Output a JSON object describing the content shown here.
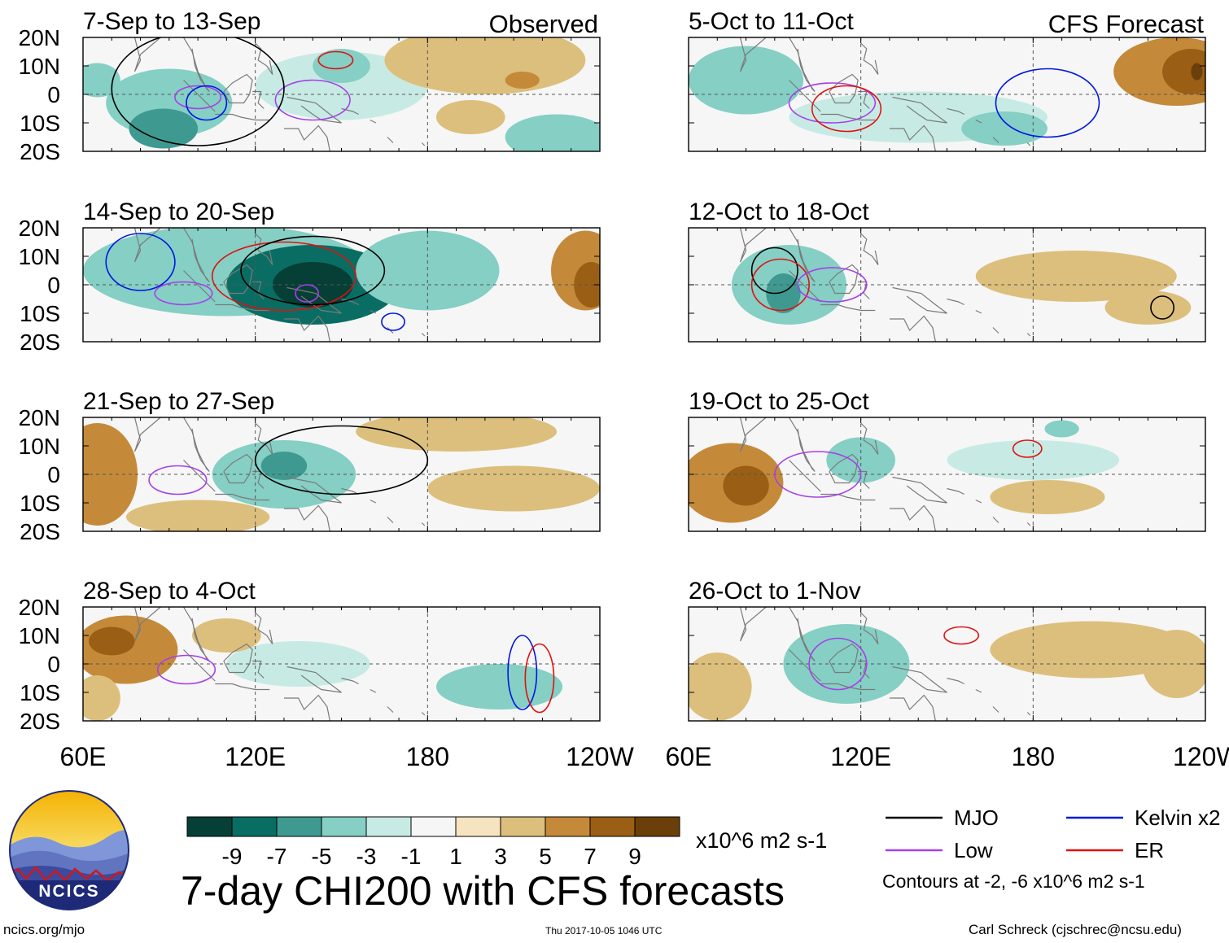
{
  "chart_data": {
    "type": "heatmap",
    "title": "7-day CHI200 with CFS forecasts",
    "units": "x10^6 m2 s-1",
    "column_labels": {
      "left": "Observed",
      "right": "CFS Forecast"
    },
    "x_ticks": [
      "60E",
      "120E",
      "180",
      "120W"
    ],
    "x_range_deg": [
      60,
      240
    ],
    "y_ticks": [
      "20N",
      "10N",
      "0",
      "10S",
      "20S"
    ],
    "y_range_deg": [
      20,
      -20
    ],
    "panels": [
      {
        "period": "7-Sep to 13-Sep",
        "kind": "observed",
        "blobs": [
          {
            "lon": 65,
            "lat": 5,
            "rx": 8,
            "ry": 6,
            "v": -3
          },
          {
            "lon": 90,
            "lat": -3,
            "rx": 22,
            "ry": 12,
            "v": -3
          },
          {
            "lon": 88,
            "lat": -12,
            "rx": 12,
            "ry": 7,
            "v": -6
          },
          {
            "lon": 150,
            "lat": 3,
            "rx": 30,
            "ry": 12,
            "v": -2
          },
          {
            "lon": 150,
            "lat": 10,
            "rx": 10,
            "ry": 6,
            "v": -4
          },
          {
            "lon": 200,
            "lat": 12,
            "rx": 35,
            "ry": 12,
            "v": 2
          },
          {
            "lon": 213,
            "lat": 5,
            "rx": 6,
            "ry": 3,
            "v": 5
          },
          {
            "lon": 225,
            "lat": -15,
            "rx": 18,
            "ry": 8,
            "v": -3
          },
          {
            "lon": 195,
            "lat": -8,
            "rx": 12,
            "ry": 6,
            "v": 2
          }
        ],
        "contours": [
          {
            "type": "Low",
            "lon": 100,
            "lat": -1,
            "rx": 8,
            "ry": 4
          },
          {
            "type": "Low",
            "lon": 140,
            "lat": -2,
            "rx": 13,
            "ry": 7
          },
          {
            "type": "ER",
            "lon": 148,
            "lat": 12,
            "rx": 6,
            "ry": 3
          },
          {
            "type": "Kelvin",
            "lon": 103,
            "lat": -3,
            "rx": 7,
            "ry": 6
          },
          {
            "type": "MJO",
            "lon": 100,
            "lat": 2,
            "rx": 30,
            "ry": 20
          }
        ]
      },
      {
        "period": "14-Sep to 20-Sep",
        "kind": "observed",
        "blobs": [
          {
            "lon": 110,
            "lat": 5,
            "rx": 50,
            "ry": 16,
            "v": -4
          },
          {
            "lon": 140,
            "lat": 0,
            "rx": 30,
            "ry": 14,
            "v": -7
          },
          {
            "lon": 140,
            "lat": 0,
            "rx": 14,
            "ry": 8,
            "v": -9
          },
          {
            "lon": 180,
            "lat": 5,
            "rx": 25,
            "ry": 14,
            "v": -3
          },
          {
            "lon": 235,
            "lat": 5,
            "rx": 12,
            "ry": 14,
            "v": 5
          },
          {
            "lon": 237,
            "lat": 0,
            "rx": 6,
            "ry": 8,
            "v": 7
          }
        ],
        "contours": [
          {
            "type": "ER",
            "lon": 130,
            "lat": 3,
            "rx": 25,
            "ry": 12
          },
          {
            "type": "MJO",
            "lon": 140,
            "lat": 5,
            "rx": 25,
            "ry": 12
          },
          {
            "type": "Low",
            "lon": 95,
            "lat": -3,
            "rx": 10,
            "ry": 4
          },
          {
            "type": "Low",
            "lon": 138,
            "lat": -3,
            "rx": 4,
            "ry": 3
          },
          {
            "type": "Kelvin",
            "lon": 168,
            "lat": -13,
            "rx": 4,
            "ry": 3
          },
          {
            "type": "Kelvin",
            "lon": 80,
            "lat": 8,
            "rx": 12,
            "ry": 10
          }
        ]
      },
      {
        "period": "21-Sep to 27-Sep",
        "kind": "observed",
        "blobs": [
          {
            "lon": 65,
            "lat": 0,
            "rx": 14,
            "ry": 18,
            "v": 5
          },
          {
            "lon": 130,
            "lat": 0,
            "rx": 25,
            "ry": 12,
            "v": -3
          },
          {
            "lon": 130,
            "lat": 3,
            "rx": 8,
            "ry": 5,
            "v": -6
          },
          {
            "lon": 190,
            "lat": 15,
            "rx": 35,
            "ry": 7,
            "v": 2
          },
          {
            "lon": 210,
            "lat": -5,
            "rx": 30,
            "ry": 8,
            "v": 2
          },
          {
            "lon": 100,
            "lat": -15,
            "rx": 25,
            "ry": 6,
            "v": 3
          }
        ],
        "contours": [
          {
            "type": "Low",
            "lon": 93,
            "lat": -2,
            "rx": 10,
            "ry": 5
          },
          {
            "type": "MJO",
            "lon": 150,
            "lat": 5,
            "rx": 30,
            "ry": 12
          }
        ]
      },
      {
        "period": "28-Sep to 4-Oct",
        "kind": "observed",
        "blobs": [
          {
            "lon": 75,
            "lat": 5,
            "rx": 18,
            "ry": 12,
            "v": 4
          },
          {
            "lon": 70,
            "lat": 8,
            "rx": 8,
            "ry": 5,
            "v": 6
          },
          {
            "lon": 205,
            "lat": -8,
            "rx": 22,
            "ry": 8,
            "v": -4
          },
          {
            "lon": 135,
            "lat": 0,
            "rx": 25,
            "ry": 8,
            "v": -2
          },
          {
            "lon": 110,
            "lat": 10,
            "rx": 12,
            "ry": 6,
            "v": 2
          },
          {
            "lon": 65,
            "lat": -12,
            "rx": 8,
            "ry": 8,
            "v": 3
          }
        ],
        "contours": [
          {
            "type": "Low",
            "lon": 96,
            "lat": -2,
            "rx": 10,
            "ry": 5
          },
          {
            "type": "Kelvin",
            "lon": 213,
            "lat": -3,
            "rx": 5,
            "ry": 13
          },
          {
            "type": "ER",
            "lon": 219,
            "lat": -5,
            "rx": 5,
            "ry": 12
          }
        ]
      },
      {
        "period": "5-Oct to 11-Oct",
        "kind": "forecast",
        "blobs": [
          {
            "lon": 80,
            "lat": 5,
            "rx": 20,
            "ry": 12,
            "v": -3
          },
          {
            "lon": 140,
            "lat": -8,
            "rx": 45,
            "ry": 9,
            "v": -2
          },
          {
            "lon": 170,
            "lat": -12,
            "rx": 15,
            "ry": 6,
            "v": -4
          },
          {
            "lon": 230,
            "lat": 8,
            "rx": 22,
            "ry": 12,
            "v": 4
          },
          {
            "lon": 235,
            "lat": 8,
            "rx": 10,
            "ry": 8,
            "v": 7
          },
          {
            "lon": 237,
            "lat": 8,
            "rx": 2,
            "ry": 3,
            "v": 9
          }
        ],
        "contours": [
          {
            "type": "Low",
            "lon": 110,
            "lat": -3,
            "rx": 15,
            "ry": 7
          },
          {
            "type": "ER",
            "lon": 115,
            "lat": -5,
            "rx": 12,
            "ry": 8
          },
          {
            "type": "Kelvin",
            "lon": 185,
            "lat": -3,
            "rx": 18,
            "ry": 12
          }
        ]
      },
      {
        "period": "12-Oct to 18-Oct",
        "kind": "forecast",
        "blobs": [
          {
            "lon": 95,
            "lat": 0,
            "rx": 20,
            "ry": 14,
            "v": -3
          },
          {
            "lon": 93,
            "lat": -3,
            "rx": 6,
            "ry": 7,
            "v": -6
          },
          {
            "lon": 195,
            "lat": 3,
            "rx": 35,
            "ry": 9,
            "v": 2
          },
          {
            "lon": 220,
            "lat": -8,
            "rx": 15,
            "ry": 6,
            "v": 2
          }
        ],
        "contours": [
          {
            "type": "MJO",
            "lon": 90,
            "lat": 5,
            "rx": 8,
            "ry": 8
          },
          {
            "type": "ER",
            "lon": 92,
            "lat": 0,
            "rx": 10,
            "ry": 9
          },
          {
            "type": "Low",
            "lon": 110,
            "lat": 0,
            "rx": 12,
            "ry": 6
          },
          {
            "type": "MJO",
            "lon": 225,
            "lat": -8,
            "rx": 4,
            "ry": 4
          }
        ]
      },
      {
        "period": "19-Oct to 25-Oct",
        "kind": "forecast",
        "blobs": [
          {
            "lon": 75,
            "lat": -3,
            "rx": 18,
            "ry": 14,
            "v": 4
          },
          {
            "lon": 80,
            "lat": -4,
            "rx": 8,
            "ry": 7,
            "v": 6
          },
          {
            "lon": 120,
            "lat": 5,
            "rx": 12,
            "ry": 8,
            "v": -3
          },
          {
            "lon": 180,
            "lat": 5,
            "rx": 30,
            "ry": 7,
            "v": -2
          },
          {
            "lon": 190,
            "lat": 16,
            "rx": 6,
            "ry": 3,
            "v": -4
          },
          {
            "lon": 185,
            "lat": -8,
            "rx": 20,
            "ry": 6,
            "v": 2
          }
        ],
        "contours": [
          {
            "type": "Low",
            "lon": 105,
            "lat": 0,
            "rx": 15,
            "ry": 8
          },
          {
            "type": "ER",
            "lon": 178,
            "lat": 9,
            "rx": 5,
            "ry": 3
          }
        ]
      },
      {
        "period": "26-Oct to 1-Nov",
        "kind": "forecast",
        "blobs": [
          {
            "lon": 115,
            "lat": 0,
            "rx": 22,
            "ry": 14,
            "v": -3
          },
          {
            "lon": 120,
            "lat": 5,
            "rx": 10,
            "ry": 7,
            "v": -4
          },
          {
            "lon": 70,
            "lat": -8,
            "rx": 12,
            "ry": 12,
            "v": 3
          },
          {
            "lon": 200,
            "lat": 5,
            "rx": 35,
            "ry": 10,
            "v": 2
          },
          {
            "lon": 230,
            "lat": 0,
            "rx": 12,
            "ry": 12,
            "v": 3
          }
        ],
        "contours": [
          {
            "type": "Low",
            "lon": 112,
            "lat": 0,
            "rx": 10,
            "ry": 9
          },
          {
            "type": "ER",
            "lon": 155,
            "lat": 10,
            "rx": 6,
            "ry": 3
          }
        ]
      }
    ],
    "colorbar": {
      "tick_labels": [
        "-9",
        "-7",
        "-5",
        "-3",
        "-1",
        "1",
        "3",
        "5",
        "7",
        "9"
      ],
      "colors": [
        "#063f35",
        "#0a6d63",
        "#3e9a90",
        "#85cfc4",
        "#c7ebe4",
        "#f6f6f6",
        "#f5e4bf",
        "#dcbf7c",
        "#c48a3a",
        "#9a5e14",
        "#6b3f0a"
      ]
    },
    "legend": {
      "items": [
        {
          "label": "MJO",
          "color": "#000000"
        },
        {
          "label": "Kelvin x2",
          "color": "#0018e0"
        },
        {
          "label": "Low",
          "color": "#a640e8"
        },
        {
          "label": "ER",
          "color": "#e01010"
        }
      ],
      "note": "Contours at -2, -6 x10^6 m2 s-1"
    }
  },
  "logo": {
    "text": "NCICS"
  },
  "footer": {
    "url": "ncics.org/mjo",
    "timestamp": "Thu 2017-10-05 1046 UTC",
    "credit": "Carl Schreck (cjschrec@ncsu.edu)"
  }
}
